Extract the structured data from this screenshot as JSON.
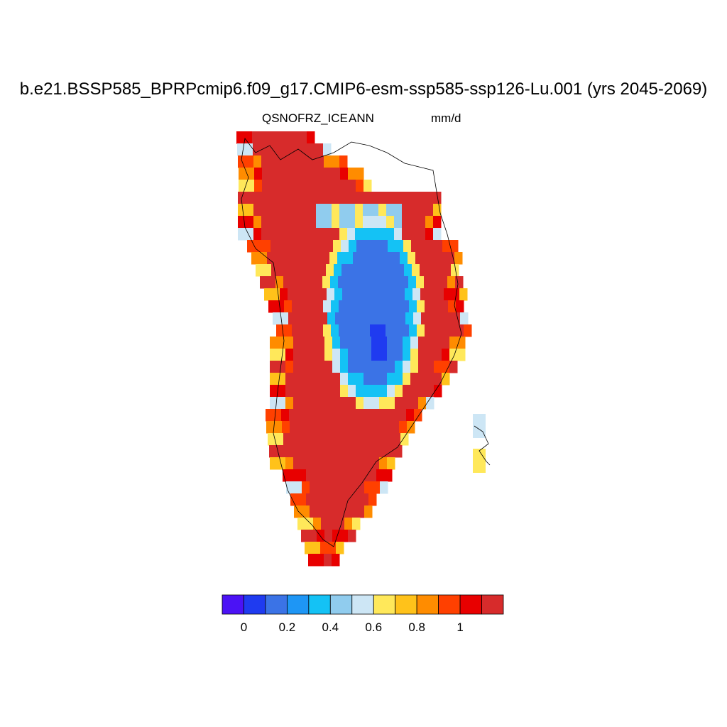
{
  "title": "b.e21.BSSP585_BPRPcmip6.f09_g17.CMIP6-esm-ssp585-ssp126-Lu.001 (yrs 2045-2069)",
  "left_label": "QSNOFRZ_ICE",
  "center_label": "ANN",
  "right_label": "mm/d",
  "colorbar": {
    "colors": [
      "#4b12f5",
      "#1f3bf0",
      "#3b73e6",
      "#1e96f5",
      "#14c2f5",
      "#90ccee",
      "#cde6f5",
      "#ffe85a",
      "#ffc21a",
      "#ff8c00",
      "#ff4000",
      "#e80000",
      "#d72b2b"
    ],
    "tick_labels": [
      "0",
      "0.2",
      "0.4",
      "0.6",
      "0.8",
      "1"
    ],
    "tick_values": [
      0,
      0.2,
      0.4,
      0.6,
      0.8,
      1.0
    ],
    "bins": [
      -0.1,
      0,
      0.1,
      0.2,
      0.3,
      0.4,
      0.5,
      0.6,
      0.7,
      0.8,
      0.9,
      1.0,
      1.1,
      1.2
    ]
  }
}
